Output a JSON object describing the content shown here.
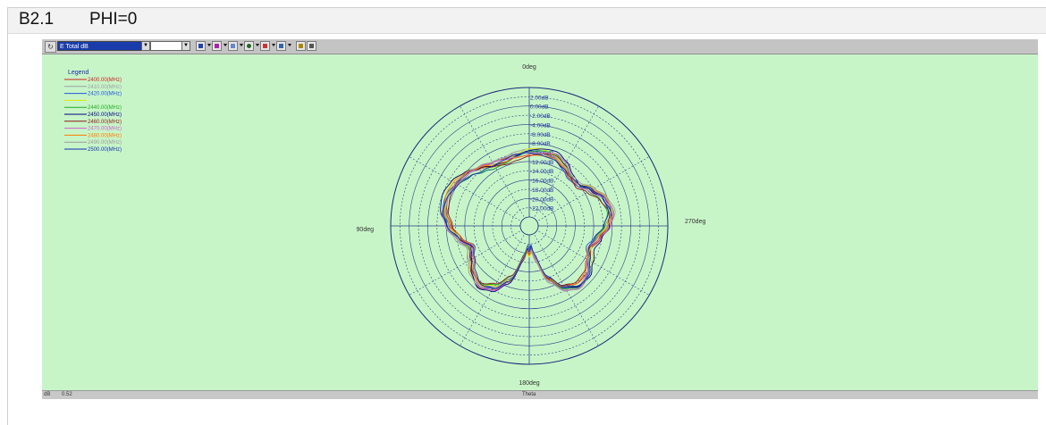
{
  "header": {
    "section": "B2.1",
    "title": "PHI=0"
  },
  "toolbar": {
    "plot_select": "E Total dB",
    "icons": [
      "refresh-icon",
      "dropdown-icon",
      "chart-icon",
      "zoom-icon",
      "grid-icon",
      "polar-icon",
      "marker-icon",
      "export-icon",
      "copy-icon",
      "print-icon"
    ]
  },
  "status": {
    "left": "dB",
    "value": "0.52",
    "axis_name": "Theta"
  },
  "chart_data": {
    "type": "polar",
    "legend_title": "Legend",
    "angle_labels": {
      "top": "0deg",
      "left": "90deg",
      "right": "270deg",
      "bottom": "180deg"
    },
    "radial_labels": [
      "2.00dB",
      "0.00dB",
      "-2.00dB",
      "-4.00dB",
      "-6.00dB",
      "-8.00dB",
      "-10.00dB",
      "-12.00dB",
      "-14.00dB",
      "-16.00dB",
      "-18.00dB",
      "-20.00dB",
      "-22.00dB"
    ],
    "r_range_db": [
      -24,
      4
    ],
    "grid": true,
    "legend_position": "top-left",
    "series": [
      {
        "name": "2400.00(MHz)",
        "color": "#cc2222",
        "offset_db": 0.0
      },
      {
        "name": "2410.00(MHz)",
        "color": "#9aa0a6",
        "offset_db": 0.3
      },
      {
        "name": "2420.00(MHz)",
        "color": "#2255dd",
        "offset_db": -0.3
      },
      {
        "name": "",
        "color": "#e6e600",
        "offset_db": 0.2
      },
      {
        "name": "2440.00(MHz)",
        "color": "#22aa22",
        "offset_db": -0.2
      },
      {
        "name": "2450.00(MHz)",
        "color": "#000080",
        "offset_db": 0.4
      },
      {
        "name": "2460.00(MHz)",
        "color": "#8b1a1a",
        "offset_db": -0.4
      },
      {
        "name": "2470.00(MHz)",
        "color": "#d060d0",
        "offset_db": 0.1
      },
      {
        "name": "2480.00(MHz)",
        "color": "#ff7a00",
        "offset_db": -0.1
      },
      {
        "name": "2490.00(MHz)",
        "color": "#9a9a9a",
        "offset_db": 0.25
      },
      {
        "name": "2500.00(MHz)",
        "color": "#1030b0",
        "offset_db": -0.25
      }
    ],
    "pattern_theta_deg": [
      0,
      10,
      20,
      30,
      40,
      50,
      60,
      70,
      80,
      90,
      100,
      110,
      120,
      130,
      140,
      150,
      160,
      170,
      175,
      180,
      185,
      190,
      200,
      210,
      220,
      230,
      240,
      250,
      260,
      270,
      280,
      290,
      300,
      310,
      320,
      330,
      340,
      350
    ],
    "pattern_gain_db": [
      -10,
      -10.5,
      -11,
      -10.8,
      -9.8,
      -8.5,
      -7.5,
      -7.0,
      -7.2,
      -8.5,
      -10.5,
      -12.5,
      -11.5,
      -10.0,
      -9.2,
      -10.5,
      -13.5,
      -19,
      -21,
      -20,
      -21,
      -19,
      -13.5,
      -10.5,
      -9.2,
      -9.5,
      -11.0,
      -12.0,
      -10.8,
      -9.0,
      -8.0,
      -8.8,
      -10.5,
      -12.2,
      -12.0,
      -10.8,
      -9.8,
      -9.8
    ]
  }
}
